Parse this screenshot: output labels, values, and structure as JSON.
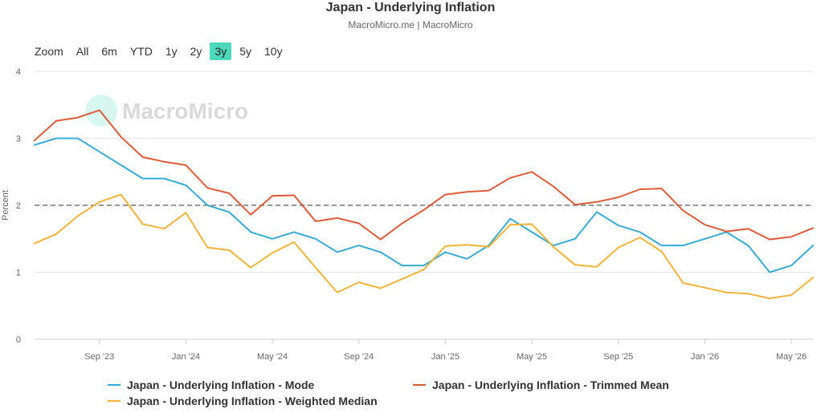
{
  "zoom": {
    "label": "Zoom",
    "options": [
      "All",
      "6m",
      "YTD",
      "1y",
      "2y",
      "3y",
      "5y",
      "10y"
    ],
    "active": "3y"
  },
  "watermark": "MacroMicro",
  "chart_data": {
    "type": "line",
    "title": "Japan - Underlying Inflation",
    "subtitle": "MacroMicro.me | MacroMicro",
    "ylabel": "Percent",
    "xlabel": "",
    "ylim": [
      0,
      4
    ],
    "yticks": [
      0,
      1,
      2,
      3,
      4
    ],
    "reference_line": 2,
    "x_start": "2023-06",
    "x_range": [
      "2023-06",
      "2026-06"
    ],
    "xticks": [
      {
        "label": "Sep '23",
        "date": "2023-09"
      },
      {
        "label": "Jan '24",
        "date": "2024-01"
      },
      {
        "label": "May '24",
        "date": "2024-05"
      },
      {
        "label": "Sep '24",
        "date": "2024-09"
      },
      {
        "label": "Jan '25",
        "date": "2025-01"
      },
      {
        "label": "May '25",
        "date": "2025-05"
      },
      {
        "label": "Sep '25",
        "date": "2025-09"
      },
      {
        "label": "Jan '26",
        "date": "2026-01"
      },
      {
        "label": "May '26",
        "date": "2026-05"
      }
    ],
    "grid": true,
    "legend_position": "bottom",
    "series": [
      {
        "name": "Japan - Underlying Inflation - Mode",
        "color": "#3aabd2",
        "values": [
          2.9,
          3.0,
          3.0,
          2.8,
          2.6,
          2.4,
          2.4,
          2.3,
          2.0,
          1.9,
          1.6,
          1.5,
          1.6,
          1.5,
          1.3,
          1.4,
          1.3,
          1.1,
          1.1,
          1.3,
          1.2,
          1.4,
          1.8,
          1.6,
          1.4,
          1.5,
          1.9,
          1.7,
          1.6,
          1.4,
          1.4,
          1.5,
          1.6,
          1.4,
          1.0,
          1.1,
          1.4
        ]
      },
      {
        "name": "Japan - Underlying Inflation - Trimmed Mean",
        "color": "#de5b3b",
        "values": [
          2.97,
          3.26,
          3.31,
          3.42,
          3.02,
          2.72,
          2.65,
          2.6,
          2.26,
          2.18,
          1.86,
          2.14,
          2.15,
          1.76,
          1.81,
          1.73,
          1.49,
          1.73,
          1.93,
          2.16,
          2.2,
          2.22,
          2.41,
          2.5,
          2.28,
          2.01,
          2.05,
          2.12,
          2.24,
          2.25,
          1.92,
          1.71,
          1.61,
          1.65,
          1.49,
          1.53,
          1.66
        ]
      },
      {
        "name": "Japan - Underlying Inflation - Weighted Median",
        "color": "#f1b43c",
        "values": [
          1.43,
          1.57,
          1.84,
          2.05,
          2.16,
          1.72,
          1.65,
          1.89,
          1.37,
          1.33,
          1.07,
          1.29,
          1.45,
          1.07,
          0.7,
          0.85,
          0.76,
          0.9,
          1.04,
          1.39,
          1.41,
          1.38,
          1.71,
          1.72,
          1.38,
          1.11,
          1.08,
          1.37,
          1.52,
          1.31,
          0.84,
          0.77,
          0.7,
          0.68,
          0.61,
          0.66,
          0.92
        ]
      }
    ]
  }
}
